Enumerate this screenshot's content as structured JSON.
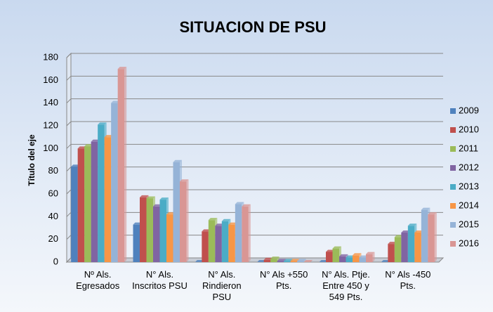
{
  "chart_data": {
    "type": "bar",
    "title": "SITUACION DE PSU",
    "y_label": "Título del eje",
    "categories": [
      "Nº Als. Egresados",
      "N° Als. Inscritos PSU",
      "N° Als. Rindieron PSU",
      "N° Als +550 Pts.",
      "N° Als. Ptje. Entre 450 y 549 Pts.",
      "N° Als -450 Pts."
    ],
    "series": [
      {
        "name": "2009",
        "color": "#4f81bd",
        "values": [
          84,
          33,
          0,
          0,
          0,
          0
        ]
      },
      {
        "name": "2010",
        "color": "#c0504d",
        "values": [
          100,
          57,
          27,
          2,
          9,
          16
        ]
      },
      {
        "name": "2011",
        "color": "#9bbb59",
        "values": [
          102,
          56,
          37,
          3,
          12,
          22
        ]
      },
      {
        "name": "2012",
        "color": "#8064a2",
        "values": [
          106,
          49,
          32,
          1,
          5,
          26
        ]
      },
      {
        "name": "2013",
        "color": "#4bacc6",
        "values": [
          121,
          55,
          36,
          1,
          4,
          32
        ]
      },
      {
        "name": "2014",
        "color": "#f79646",
        "values": [
          110,
          42,
          33,
          1,
          6,
          26
        ]
      },
      {
        "name": "2015",
        "color": "#95b3d7",
        "values": [
          140,
          88,
          51,
          1,
          4,
          46
        ]
      },
      {
        "name": "2016",
        "color": "#d99694",
        "values": [
          170,
          71,
          49,
          0,
          7,
          42
        ]
      }
    ],
    "ylim": [
      0,
      180
    ],
    "yticks": [
      0,
      20,
      40,
      60,
      80,
      100,
      120,
      140,
      160,
      180
    ],
    "grid": true,
    "legend": "right"
  }
}
